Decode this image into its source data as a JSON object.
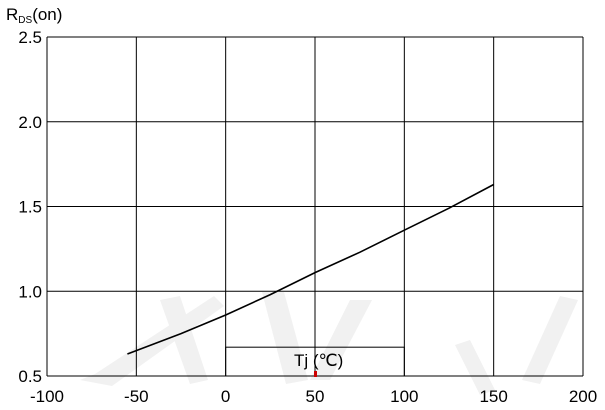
{
  "chart_data": {
    "type": "line",
    "ylabel": "RDS(on)",
    "ylabel_main": "R",
    "ylabel_sub": "DS",
    "ylabel_suffix": "(on)",
    "xlabel": "Tj (℃)",
    "xlim": [
      -100,
      200
    ],
    "ylim": [
      0.5,
      2.5
    ],
    "x_ticks": [
      -100,
      -50,
      0,
      50,
      100,
      150,
      200
    ],
    "x_tick_labels": [
      "-100",
      "-50",
      "0",
      "50",
      "100",
      "150",
      "200"
    ],
    "y_ticks": [
      0.5,
      1.0,
      1.5,
      2.0,
      2.5
    ],
    "y_tick_labels": [
      "0.5",
      "1.0",
      "1.5",
      "2.0",
      "2.5"
    ],
    "grid": true,
    "series": [
      {
        "x": [
          -55,
          -25,
          0,
          25,
          50,
          75,
          100,
          125,
          150
        ],
        "y": [
          0.63,
          0.75,
          0.86,
          0.98,
          1.11,
          1.23,
          1.36,
          1.49,
          1.63
        ]
      }
    ],
    "colors": {
      "line": "#000000",
      "grid": "#000000",
      "marker": "#cc0000",
      "watermark": "#f1f1f1"
    }
  }
}
